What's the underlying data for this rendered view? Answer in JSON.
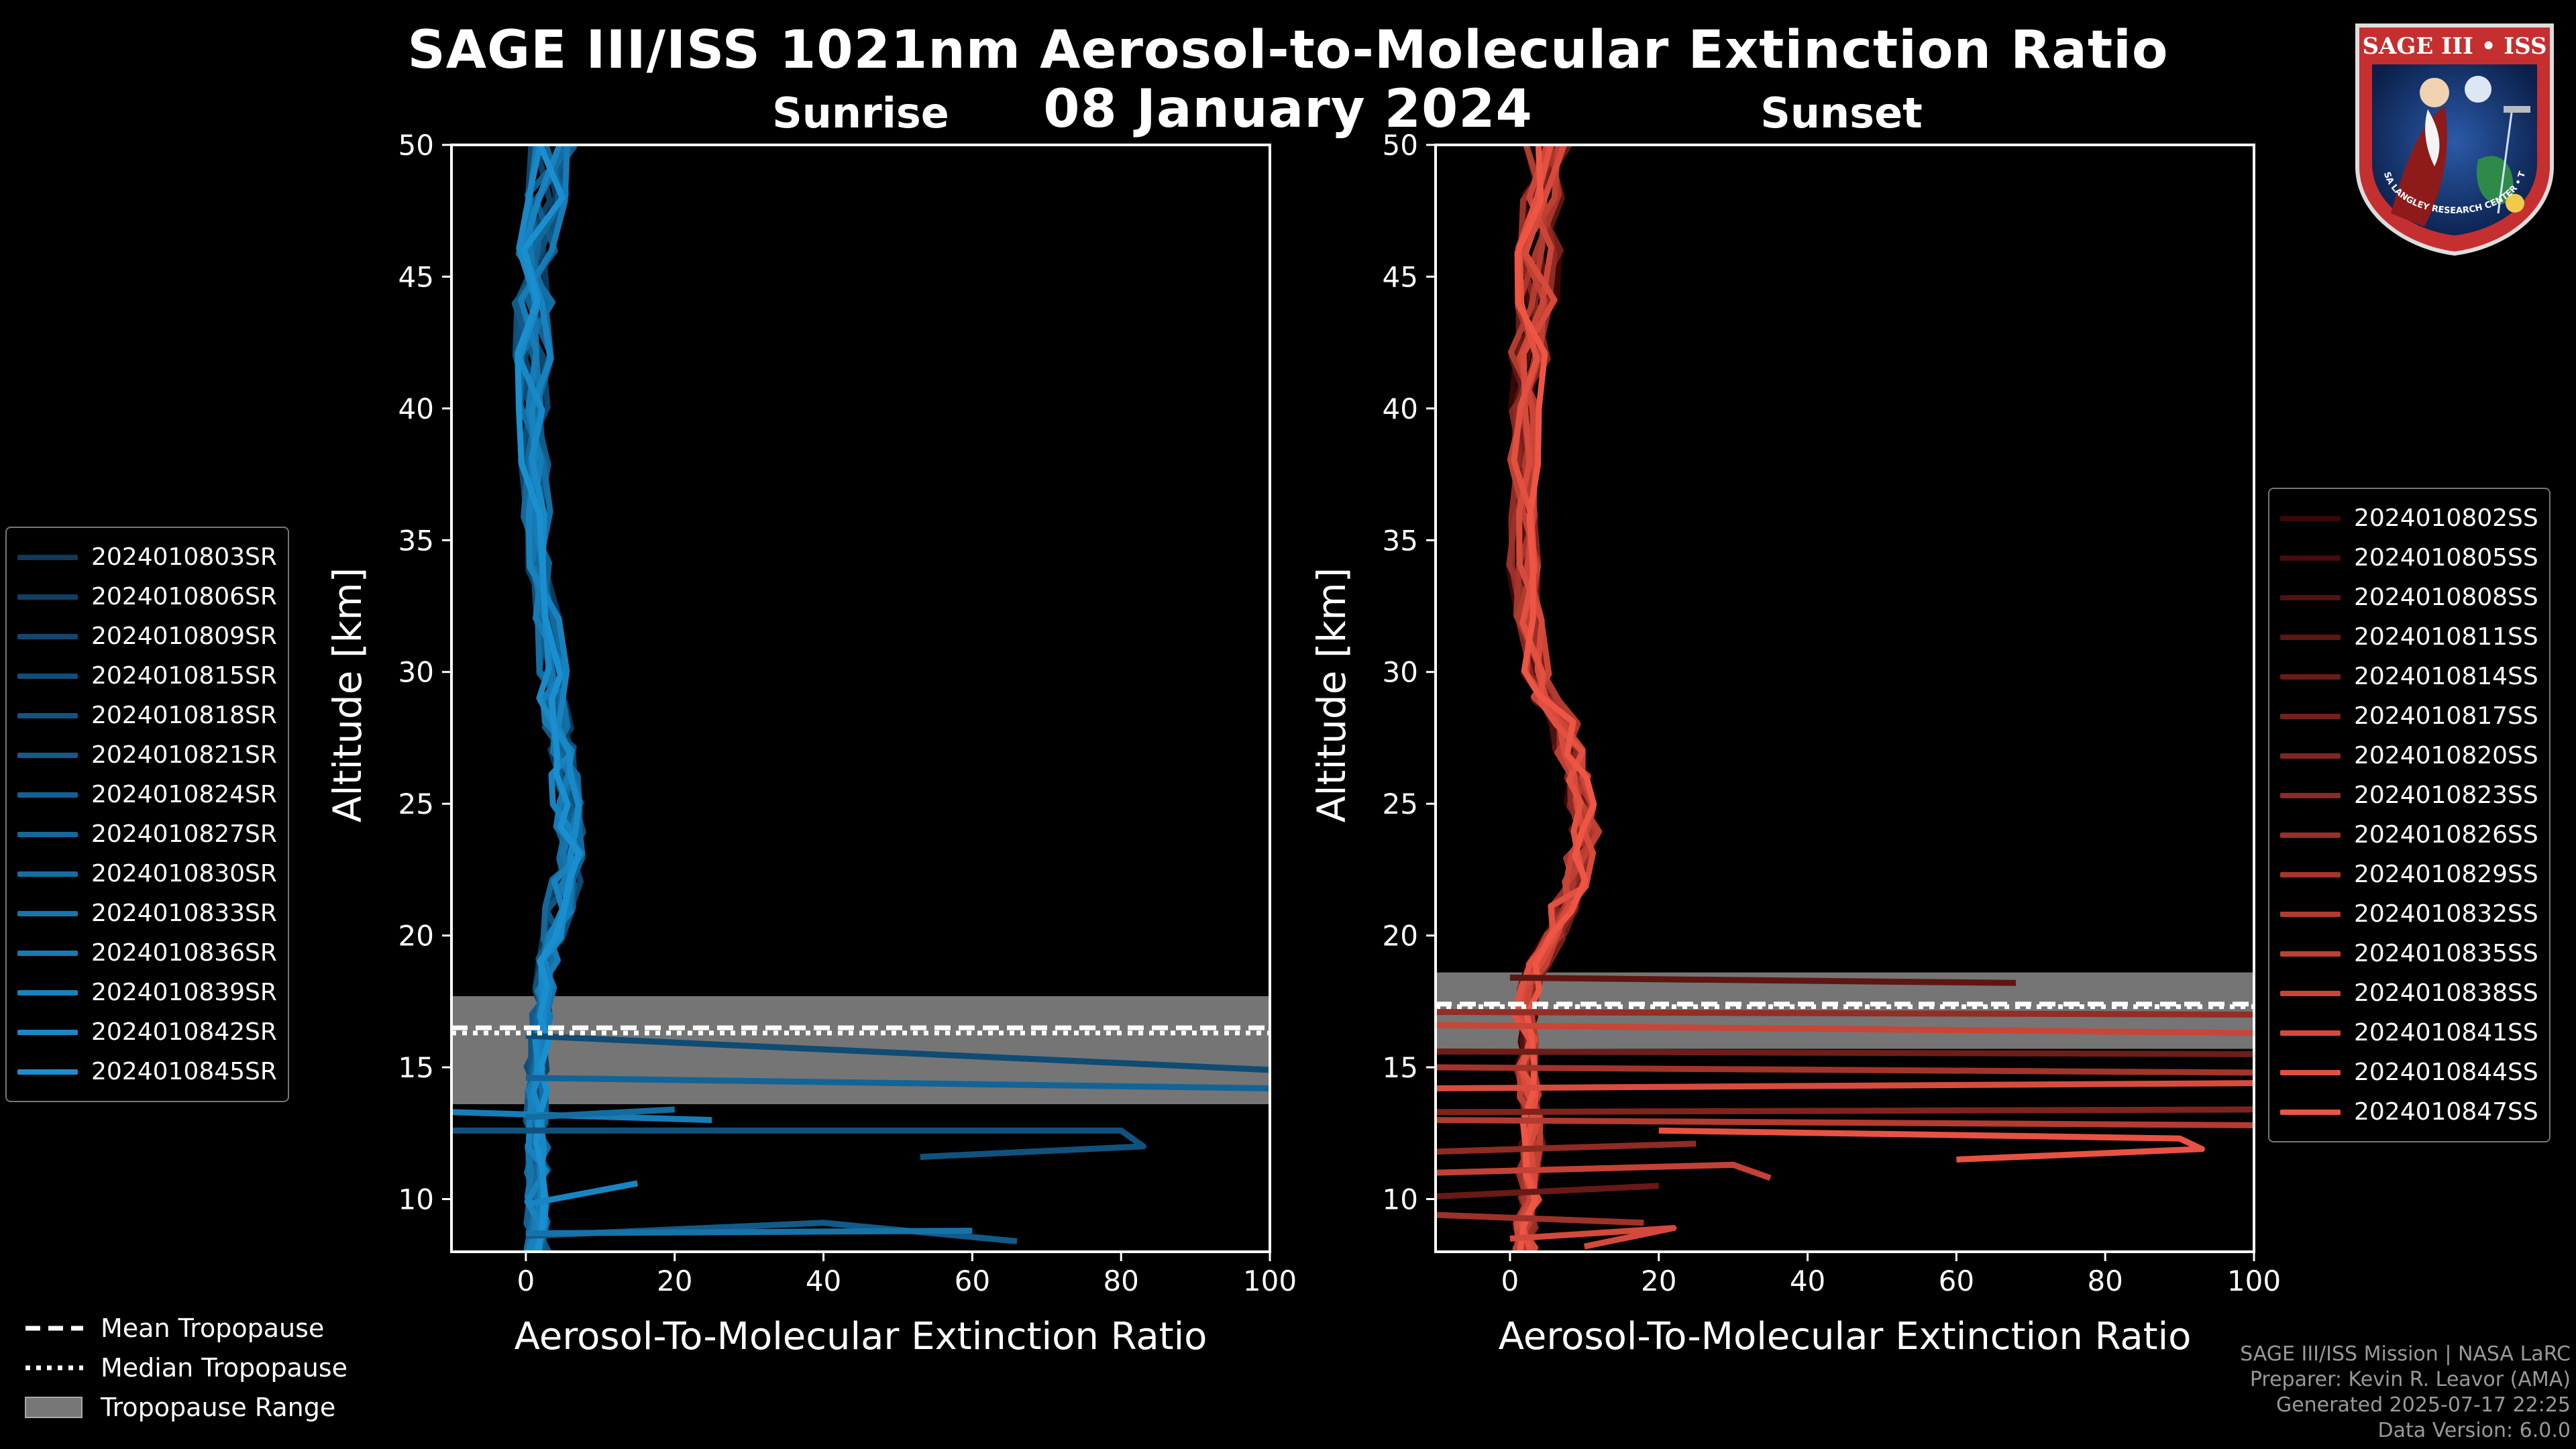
{
  "header": {
    "title_line1": "SAGE III/ISS 1021nm Aerosol-to-Molecular Extinction Ratio",
    "title_line2": "08 January 2024"
  },
  "footer": {
    "line1": "SAGE III/ISS Mission | NASA LaRC",
    "line2": "Preparer: Kevin R. Leavor (AMA)",
    "line3": "Generated 2025-07-17 22:25",
    "line4": "Data Version: 6.0.0"
  },
  "logo": {
    "text_top": "SAGE III • ISS",
    "text_ring": "BALL • NASA LANGLEY RESEARCH CENTER • TAS-I • ESA"
  },
  "tropopause_legend": {
    "mean": "Mean Tropopause",
    "median": "Median Tropopause",
    "range": "Tropopause Range"
  },
  "chart_data": [
    {
      "type": "line",
      "title": "Sunrise",
      "xlabel": "Aerosol-To-Molecular Extinction Ratio",
      "ylabel": "Altitude [km]",
      "xlim": [
        -10,
        100
      ],
      "ylim": [
        8,
        50
      ],
      "xticks": [
        0,
        20,
        40,
        60,
        80,
        100
      ],
      "yticks": [
        10,
        15,
        20,
        25,
        30,
        35,
        40,
        45,
        50
      ],
      "tropopause": {
        "mean": 16.5,
        "median": 16.3,
        "range": [
          13.6,
          17.7
        ]
      },
      "colors": {
        "dark": "#0d3a5c",
        "light": "#1a8fd0"
      },
      "series": [
        "2024010803SR",
        "2024010806SR",
        "2024010809SR",
        "2024010815SR",
        "2024010818SR",
        "2024010821SR",
        "2024010824SR",
        "2024010827SR",
        "2024010830SR",
        "2024010833SR",
        "2024010836SR",
        "2024010839SR",
        "2024010842SR",
        "2024010845SR"
      ],
      "profile": {
        "alt": [
          8,
          9,
          10,
          11,
          12,
          13,
          14,
          15,
          16,
          17,
          18,
          19,
          20,
          21,
          22,
          23,
          24,
          25,
          26,
          27,
          28,
          29,
          30,
          32,
          34,
          36,
          38,
          40,
          42,
          44,
          46,
          48,
          50
        ],
        "val": [
          1.5,
          1.5,
          1.5,
          1.5,
          1.5,
          1.5,
          1.5,
          1.5,
          1.8,
          2,
          2.5,
          3,
          3.5,
          4.5,
          5.5,
          6,
          6,
          5.5,
          5,
          4.5,
          4.2,
          3.8,
          3.5,
          2.8,
          2,
          1.5,
          1.2,
          1,
          1,
          1.3,
          2,
          3,
          3.5
        ]
      },
      "spikes": [
        {
          "points": [
            [
              0,
              16.2
            ],
            [
              100,
              14.9
            ]
          ]
        },
        {
          "points": [
            [
              0,
              14.6
            ],
            [
              100,
              14.2
            ]
          ]
        },
        {
          "points": [
            [
              -10,
              13.3
            ],
            [
              25,
              13
            ]
          ]
        },
        {
          "points": [
            [
              -10,
              12.6
            ],
            [
              80,
              12.6
            ],
            [
              83,
              12
            ],
            [
              53,
              11.6
            ]
          ]
        },
        {
          "points": [
            [
              0,
              13.1
            ],
            [
              20,
              13.4
            ]
          ]
        },
        {
          "points": [
            [
              0,
              9.8
            ],
            [
              15,
              10.6
            ]
          ]
        },
        {
          "points": [
            [
              0,
              8.6
            ],
            [
              40,
              9.1
            ],
            [
              66,
              8.4
            ]
          ]
        },
        {
          "points": [
            [
              0,
              8.7
            ],
            [
              60,
              8.8
            ]
          ]
        }
      ]
    },
    {
      "type": "line",
      "title": "Sunset",
      "xlabel": "Aerosol-To-Molecular Extinction Ratio",
      "ylabel": "Altitude [km]",
      "xlim": [
        -10,
        100
      ],
      "ylim": [
        8,
        50
      ],
      "xticks": [
        0,
        20,
        40,
        60,
        80,
        100
      ],
      "yticks": [
        10,
        15,
        20,
        25,
        30,
        35,
        40,
        45,
        50
      ],
      "tropopause": {
        "mean": 17.4,
        "median": 17.3,
        "range": [
          15.7,
          18.6
        ]
      },
      "colors": {
        "dark": "#3a0606",
        "light": "#ee5544"
      },
      "series": [
        "2024010802SS",
        "2024010805SS",
        "2024010808SS",
        "2024010811SS",
        "2024010814SS",
        "2024010817SS",
        "2024010820SS",
        "2024010823SS",
        "2024010826SS",
        "2024010829SS",
        "2024010832SS",
        "2024010835SS",
        "2024010838SS",
        "2024010841SS",
        "2024010844SS",
        "2024010847SS"
      ],
      "profile": {
        "alt": [
          8,
          9,
          10,
          11,
          12,
          13,
          14,
          15,
          16,
          17,
          18,
          19,
          20,
          21,
          22,
          23,
          24,
          25,
          26,
          27,
          28,
          29,
          30,
          32,
          34,
          36,
          38,
          40,
          42,
          44,
          46,
          48,
          50
        ],
        "val": [
          2,
          2,
          2.5,
          2.5,
          3,
          3,
          2.5,
          2,
          2,
          2,
          2.5,
          4,
          6,
          7.5,
          8.5,
          9.5,
          10,
          9.5,
          9,
          8,
          7.5,
          5,
          3.5,
          2.5,
          1.8,
          1.5,
          1.8,
          2,
          3,
          3.5,
          4,
          4.5,
          5
        ]
      },
      "spikes": [
        {
          "points": [
            [
              0,
              18.4
            ],
            [
              68,
              18.2
            ]
          ]
        },
        {
          "points": [
            [
              -10,
              17.1
            ],
            [
              100,
              17
            ]
          ]
        },
        {
          "points": [
            [
              -10,
              16.6
            ],
            [
              100,
              16.3
            ]
          ]
        },
        {
          "points": [
            [
              -10,
              15.6
            ],
            [
              100,
              15.5
            ]
          ]
        },
        {
          "points": [
            [
              -10,
              15.0
            ],
            [
              100,
              14.8
            ]
          ]
        },
        {
          "points": [
            [
              -10,
              14.2
            ],
            [
              100,
              14.4
            ]
          ]
        },
        {
          "points": [
            [
              -10,
              13.3
            ],
            [
              100,
              13.4
            ]
          ]
        },
        {
          "points": [
            [
              -10,
              13.0
            ],
            [
              100,
              12.8
            ]
          ]
        },
        {
          "points": [
            [
              20,
              12.6
            ],
            [
              90,
              12.3
            ],
            [
              93,
              11.9
            ],
            [
              60,
              11.5
            ]
          ]
        },
        {
          "points": [
            [
              -10,
              11.8
            ],
            [
              25,
              12.1
            ]
          ]
        },
        {
          "points": [
            [
              -10,
              11.0
            ],
            [
              30,
              11.3
            ],
            [
              35,
              10.8
            ]
          ]
        },
        {
          "points": [
            [
              -10,
              10.1
            ],
            [
              20,
              10.5
            ]
          ]
        },
        {
          "points": [
            [
              -10,
              9.4
            ],
            [
              18,
              9.1
            ]
          ]
        },
        {
          "points": [
            [
              0,
              8.5
            ],
            [
              22,
              8.9
            ],
            [
              10,
              8.2
            ]
          ]
        }
      ]
    }
  ]
}
